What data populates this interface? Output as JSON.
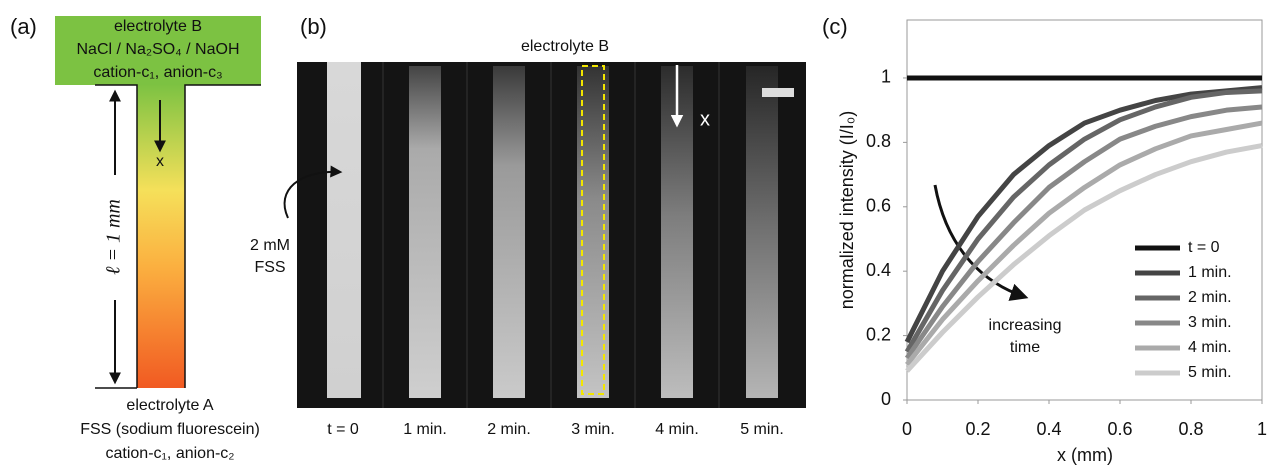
{
  "panel_a": {
    "label": "(a)",
    "top_lines": [
      "electrolyte B",
      "NaCl / Na₂SO₄ / NaOH",
      "cation-c₁, anion-c₃"
    ],
    "axis_label": "x",
    "length_label": "ℓ = 1 mm",
    "bottom_lines": [
      "electrolyte A",
      "FSS (sodium fluorescein)",
      "cation-c₁, anion-c₂"
    ]
  },
  "panel_b": {
    "label": "(b)",
    "title": "electrolyte B",
    "callout": [
      "2 mM",
      "FSS"
    ],
    "axis_label": "x",
    "times": [
      "t = 0",
      "1 min.",
      "2 min.",
      "3 min.",
      "4 min.",
      "5 min."
    ]
  },
  "chart_data": {
    "type": "line",
    "label": "(c)",
    "xlabel": "x (mm)",
    "ylabel": "normalized intensity (I/I₀)",
    "annotation": [
      "increasing",
      "time"
    ],
    "x": [
      0,
      0.1,
      0.2,
      0.3,
      0.4,
      0.5,
      0.6,
      0.7,
      0.8,
      0.9,
      1
    ],
    "xlim": [
      0,
      1
    ],
    "xticks": [
      0,
      0.2,
      0.4,
      0.6,
      0.8,
      1
    ],
    "ylim": [
      0,
      1.18
    ],
    "yticks": [
      0,
      0.2,
      0.4,
      0.6,
      0.8,
      1
    ],
    "series": [
      {
        "name": "t = 0",
        "color": "#111111",
        "values": [
          1,
          1,
          1,
          1,
          1,
          1,
          1,
          1,
          1,
          1,
          1
        ]
      },
      {
        "name": "1 min.",
        "color": "#444444",
        "values": [
          0.18,
          0.4,
          0.57,
          0.7,
          0.79,
          0.86,
          0.9,
          0.93,
          0.95,
          0.96,
          0.97
        ]
      },
      {
        "name": "2 min.",
        "color": "#666666",
        "values": [
          0.15,
          0.34,
          0.5,
          0.63,
          0.73,
          0.81,
          0.87,
          0.91,
          0.94,
          0.955,
          0.96
        ]
      },
      {
        "name": "3 min.",
        "color": "#888888",
        "values": [
          0.13,
          0.29,
          0.43,
          0.55,
          0.66,
          0.74,
          0.81,
          0.85,
          0.88,
          0.9,
          0.91
        ]
      },
      {
        "name": "4 min.",
        "color": "#aaaaaa",
        "values": [
          0.11,
          0.25,
          0.37,
          0.48,
          0.58,
          0.66,
          0.73,
          0.78,
          0.82,
          0.84,
          0.86
        ]
      },
      {
        "name": "5 min.",
        "color": "#cccccc",
        "values": [
          0.09,
          0.21,
          0.32,
          0.42,
          0.51,
          0.59,
          0.65,
          0.7,
          0.74,
          0.77,
          0.79
        ]
      }
    ]
  }
}
